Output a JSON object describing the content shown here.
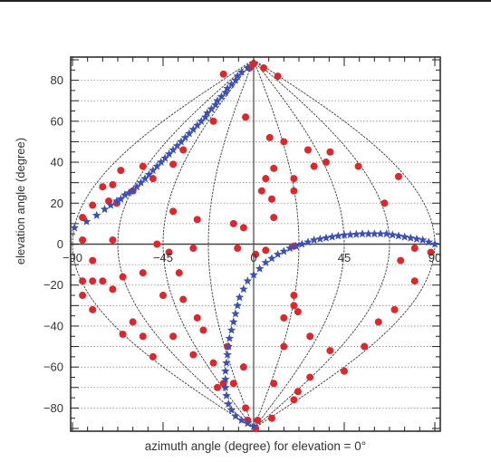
{
  "chart_data": {
    "type": "scatter",
    "xlabel": "azimuth angle (degree) for elevation = 0°",
    "ylabel": "elevation angle (degree)",
    "xlim": [
      -90,
      90
    ],
    "ylim": [
      -90,
      90
    ],
    "x_ticks": [
      -90,
      -45,
      0,
      45,
      90
    ],
    "x_tick_labels": [
      "−90",
      "−45",
      "0",
      "45",
      "90"
    ],
    "y_ticks": [
      -80,
      -60,
      -40,
      -20,
      0,
      20,
      40,
      60,
      80
    ],
    "y_tick_labels": [
      "−80",
      "−60",
      "−40",
      "−20",
      "0",
      "20",
      "40",
      "60",
      "80"
    ],
    "grid": "dotted horizontal gridlines every 10 degrees",
    "projection": "sinusoidal (meridians every 22.5 degrees)",
    "meridians": [
      -90,
      -67.5,
      -45,
      -22.5,
      0,
      22.5,
      45,
      67.5,
      90
    ],
    "series": [
      {
        "marker": "circle",
        "color": "#e0262b",
        "points": [
          [
            0,
            88
          ],
          [
            -2,
            86
          ],
          [
            5,
            86
          ],
          [
            -15,
            83
          ],
          [
            12,
            82
          ],
          [
            -4,
            62
          ],
          [
            -20,
            60
          ],
          [
            8,
            52
          ],
          [
            15,
            50
          ],
          [
            -55,
            38
          ],
          [
            -40,
            39
          ],
          [
            -35,
            46
          ],
          [
            -50,
            32
          ],
          [
            -60,
            26
          ],
          [
            -70,
            29
          ],
          [
            -75,
            28
          ],
          [
            -66,
            36
          ],
          [
            -68,
            20
          ],
          [
            -72,
            21
          ],
          [
            -80,
            19
          ],
          [
            -85,
            13
          ],
          [
            27,
            46
          ],
          [
            38,
            45
          ],
          [
            36,
            40
          ],
          [
            30,
            38
          ],
          [
            52,
            38
          ],
          [
            72,
            33
          ],
          [
            65,
            20
          ],
          [
            20,
            32
          ],
          [
            20,
            26
          ],
          [
            6,
            32
          ],
          [
            10,
            37
          ],
          [
            4,
            26
          ],
          [
            9,
            22
          ],
          [
            -40,
            16
          ],
          [
            -28,
            12
          ],
          [
            -8,
            -2
          ],
          [
            -10,
            10
          ],
          [
            -5,
            8
          ],
          [
            -70,
            2
          ],
          [
            -85,
            2
          ],
          [
            -55,
            -14
          ],
          [
            -48,
            0
          ],
          [
            -42,
            -4
          ],
          [
            -30,
            -2
          ],
          [
            -37,
            -14
          ],
          [
            10,
            13
          ],
          [
            1,
            -5
          ],
          [
            6,
            -3
          ],
          [
            20,
            -1
          ],
          [
            80,
            -2
          ],
          [
            88,
            -4
          ],
          [
            73,
            -8
          ],
          [
            -80,
            -8
          ],
          [
            -85,
            -18
          ],
          [
            -80,
            -18
          ],
          [
            -75,
            -18
          ],
          [
            -65,
            -16
          ],
          [
            -70,
            -22
          ],
          [
            -45,
            -25
          ],
          [
            -35,
            -27
          ],
          [
            -28,
            -36
          ],
          [
            -85,
            -25
          ],
          [
            -80,
            -32
          ],
          [
            -60,
            -38
          ],
          [
            -65,
            -44
          ],
          [
            -55,
            -45
          ],
          [
            -40,
            -45
          ],
          [
            -50,
            -55
          ],
          [
            -25,
            -42
          ],
          [
            -30,
            -54
          ],
          [
            -20,
            -58
          ],
          [
            -13,
            -50
          ],
          [
            -15,
            -68
          ],
          [
            -10,
            -68
          ],
          [
            -18,
            -70
          ],
          [
            -5,
            -60
          ],
          [
            -4,
            -80
          ],
          [
            20,
            -25
          ],
          [
            22,
            -33
          ],
          [
            20,
            -30
          ],
          [
            15,
            -36
          ],
          [
            15,
            -50
          ],
          [
            28,
            -45
          ],
          [
            38,
            -52
          ],
          [
            45,
            -62
          ],
          [
            55,
            -50
          ],
          [
            62,
            -38
          ],
          [
            70,
            -32
          ],
          [
            80,
            -18
          ],
          [
            28,
            -65
          ],
          [
            22,
            -72
          ],
          [
            20,
            -76
          ],
          [
            10,
            -68
          ],
          [
            9,
            -85
          ],
          [
            2,
            -86
          ],
          [
            -3,
            -86
          ],
          [
            1,
            -90
          ]
        ]
      },
      {
        "marker": "star",
        "color": "#3b4fb8",
        "points": [
          [
            -3,
            86
          ],
          [
            -6,
            84
          ],
          [
            -8,
            82
          ],
          [
            -9,
            80
          ],
          [
            -11,
            78
          ],
          [
            -13,
            76
          ],
          [
            -14,
            74
          ],
          [
            -16,
            72
          ],
          [
            -18,
            70
          ],
          [
            -19,
            68
          ],
          [
            -21,
            66
          ],
          [
            -23,
            64
          ],
          [
            -24,
            62
          ],
          [
            -26,
            60
          ],
          [
            -28,
            58
          ],
          [
            -30,
            56
          ],
          [
            -32,
            54
          ],
          [
            -34,
            52
          ],
          [
            -36,
            50
          ],
          [
            -38,
            48
          ],
          [
            -40,
            46
          ],
          [
            -42,
            44
          ],
          [
            -44,
            42
          ],
          [
            -46,
            40
          ],
          [
            -48,
            38
          ],
          [
            -50,
            36
          ],
          [
            -52,
            34
          ],
          [
            -54,
            32
          ],
          [
            -56,
            30
          ],
          [
            -58,
            28
          ],
          [
            -60,
            26
          ],
          [
            -62,
            25
          ],
          [
            -64,
            24
          ],
          [
            -66,
            22
          ],
          [
            -68,
            21
          ],
          [
            -71,
            19
          ],
          [
            -74,
            17
          ],
          [
            -78,
            14
          ],
          [
            -83,
            11
          ],
          [
            -89,
            8
          ],
          [
            90,
            0
          ],
          [
            87,
            1
          ],
          [
            84,
            2
          ],
          [
            81,
            2.5
          ],
          [
            78,
            3
          ],
          [
            75,
            3.5
          ],
          [
            72,
            4
          ],
          [
            69,
            4.5
          ],
          [
            66,
            5
          ],
          [
            63,
            5
          ],
          [
            60,
            5
          ],
          [
            57,
            5
          ],
          [
            54,
            5
          ],
          [
            51,
            4.8
          ],
          [
            48,
            4.6
          ],
          [
            45,
            4.4
          ],
          [
            42,
            4
          ],
          [
            39,
            3.5
          ],
          [
            36,
            3
          ],
          [
            33,
            2.5
          ],
          [
            30,
            2
          ],
          [
            27,
            1
          ],
          [
            24,
            0
          ],
          [
            21,
            -1
          ],
          [
            18,
            -2
          ],
          [
            15,
            -3.5
          ],
          [
            12,
            -5
          ],
          [
            9,
            -7
          ],
          [
            6,
            -9
          ],
          [
            3,
            -12
          ],
          [
            0,
            -15
          ],
          [
            -3,
            -18
          ],
          [
            -5,
            -22
          ],
          [
            -7,
            -26
          ],
          [
            -8,
            -30
          ],
          [
            -9,
            -34
          ],
          [
            -10,
            -38
          ],
          [
            -11,
            -42
          ],
          [
            -12,
            -46
          ],
          [
            -12.5,
            -50
          ],
          [
            -13,
            -54
          ],
          [
            -13.5,
            -58
          ],
          [
            -14,
            -62
          ],
          [
            -14,
            -66
          ],
          [
            -14,
            -70
          ],
          [
            -13.5,
            -74
          ],
          [
            -12.5,
            -78
          ],
          [
            -11,
            -81
          ],
          [
            -9,
            -84
          ],
          [
            -6,
            -86
          ],
          [
            -3,
            -87.5
          ],
          [
            0,
            -89
          ]
        ]
      }
    ]
  }
}
